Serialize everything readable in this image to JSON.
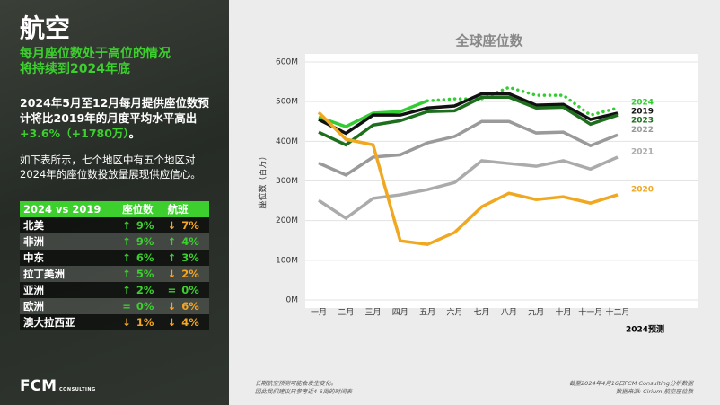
{
  "header": {
    "title": "航空",
    "subtitle": [
      "每月座位数处于高位的情况",
      "将持续到2024年底"
    ]
  },
  "summary": [
    "2024年5月至12月每月提供座位数预计将比2019年的月度平均水平高出",
    "+3.6%（+1780万）",
    "。"
  ],
  "intro": "如下表所示，七个地区中有五个地区对2024年的座位数投放量展现供应信心。",
  "table": {
    "header": [
      "2024 vs 2019",
      "座位数",
      "航班"
    ],
    "rows": [
      [
        "北美",
        {
          "arrow": "↑",
          "text": "9%",
          "color": "#3ccf2e"
        },
        {
          "arrow": "↓",
          "text": "7%",
          "color": "#f5a623"
        }
      ],
      [
        "非洲",
        {
          "arrow": "↑",
          "text": "9%",
          "color": "#3ccf2e"
        },
        {
          "arrow": "↑",
          "text": "4%",
          "color": "#3ccf2e"
        }
      ],
      [
        "中东",
        {
          "arrow": "↑",
          "text": "6%",
          "color": "#3ccf2e"
        },
        {
          "arrow": "↑",
          "text": "3%",
          "color": "#3ccf2e"
        }
      ],
      [
        "拉丁美洲",
        {
          "arrow": "↑",
          "text": "5%",
          "color": "#3ccf2e"
        },
        {
          "arrow": "↓",
          "text": "2%",
          "color": "#f5a623"
        }
      ],
      [
        "亚洲",
        {
          "arrow": "↑",
          "text": "2%",
          "color": "#3ccf2e"
        },
        {
          "arrow": "=",
          "text": "0%",
          "color": "#3ccf2e"
        }
      ],
      [
        "欧洲",
        {
          "arrow": "=",
          "text": "0%",
          "color": "#3ccf2e"
        },
        {
          "arrow": "↓",
          "text": "6%",
          "color": "#f5a623"
        }
      ],
      [
        "澳大拉西亚",
        {
          "arrow": "↓",
          "text": "1%",
          "color": "#f5a623"
        },
        {
          "arrow": "↓",
          "text": "4%",
          "color": "#f5a623"
        }
      ]
    ]
  },
  "logo": {
    "name": "FCM",
    "tag": "CONSULTING"
  },
  "footer_left": [
    "长期航空预测可能会发生变化。",
    "因此我们建议只参考近4-6周的时间表"
  ],
  "footer_right": [
    "截至2024年4月16日FCM Consulting分析数据",
    "数据来源: Cirium 航空座位数"
  ],
  "chart_data": {
    "type": "line",
    "title": "全球座位数",
    "y_label": "座位数（百万）",
    "note": "2024预测",
    "categories": [
      "一月",
      "二月",
      "三月",
      "四月",
      "五月",
      "六月",
      "七月",
      "八月",
      "九月",
      "十月",
      "十一月",
      "十二月"
    ],
    "ylim": [
      0,
      600
    ],
    "yticks": [
      {
        "value": 0,
        "label": "0M"
      },
      {
        "value": 100,
        "label": "100M"
      },
      {
        "value": 200,
        "label": "200M"
      },
      {
        "value": 300,
        "label": "300M"
      },
      {
        "value": 400,
        "label": "400M"
      },
      {
        "value": 500,
        "label": "500M"
      },
      {
        "value": 600,
        "label": "600M"
      }
    ],
    "grid": true,
    "series": [
      {
        "name": "2024",
        "color": "#33cc33",
        "values": [
          461,
          437,
          471,
          475,
          502,
          507,
          507,
          536,
          516,
          516,
          466,
          484
        ]
      },
      {
        "name": "2019",
        "color": "#111111",
        "values": [
          455,
          420,
          466,
          466,
          484,
          489,
          520,
          520,
          491,
          493,
          455,
          471
        ]
      },
      {
        "name": "2023",
        "color": "#1d6e1d",
        "values": [
          423,
          391,
          441,
          452,
          475,
          477,
          511,
          511,
          484,
          486,
          443,
          466
        ]
      },
      {
        "name": "2022",
        "color": "#9a9a9a",
        "values": [
          345,
          315,
          360,
          366,
          396,
          412,
          450,
          450,
          421,
          423,
          389,
          416
        ]
      },
      {
        "name": "2021",
        "color": "#ababab",
        "values": [
          251,
          206,
          256,
          265,
          278,
          296,
          351,
          344,
          337,
          351,
          330,
          360
        ]
      },
      {
        "name": "2020",
        "color": "#f0a820",
        "values": [
          473,
          405,
          391,
          149,
          140,
          170,
          235,
          269,
          253,
          260,
          244,
          265
        ]
      }
    ]
  }
}
